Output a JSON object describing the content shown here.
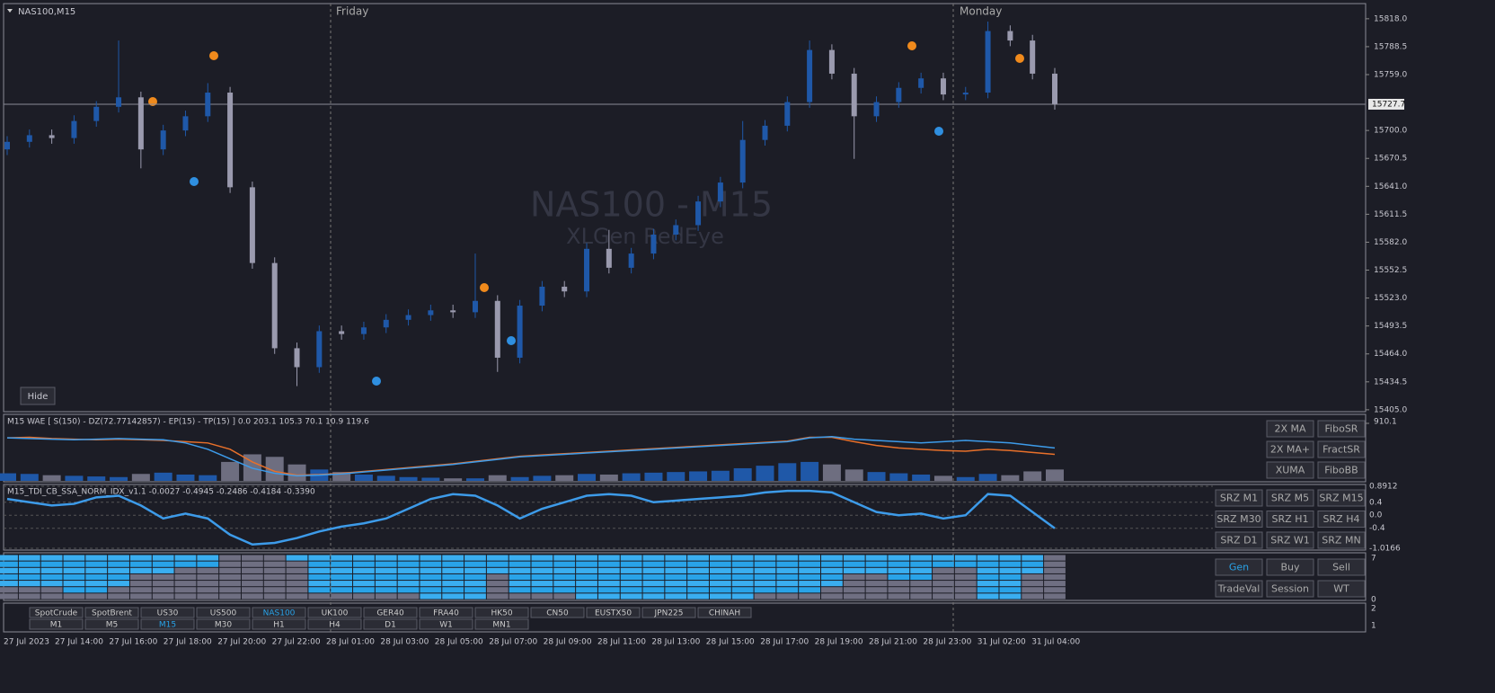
{
  "header": {
    "symbol": "NAS100,M15",
    "days": [
      "Friday",
      "Monday"
    ],
    "watermark": "NAS100 - M15",
    "watermark_sub": "XLGen RedEye",
    "hide": "Hide"
  },
  "chart_data": {
    "type": "candlestick",
    "open": [
      15680,
      15688,
      15695,
      15692,
      15710,
      15725,
      15735,
      15680,
      15700,
      15715,
      15740,
      15640,
      15560,
      15470,
      15450,
      15488,
      15485,
      15492,
      15500,
      15505,
      15510,
      15508,
      15520,
      15460,
      15515,
      15535,
      15530,
      15575,
      15555,
      15570,
      15590,
      15600,
      15625,
      15645,
      15690,
      15705,
      15730,
      15785,
      15760,
      15715,
      15730,
      15745,
      15755,
      15738,
      15740,
      15805,
      15795,
      15760
    ],
    "high": [
      15694,
      15701,
      15701,
      15716,
      15731,
      15795,
      15741,
      15706,
      15721,
      15750,
      15746,
      15646,
      15566,
      15476,
      15494,
      15494,
      15498,
      15506,
      15511,
      15516,
      15516,
      15570,
      15526,
      15521,
      15541,
      15541,
      15581,
      15595,
      15576,
      15596,
      15606,
      15631,
      15651,
      15710,
      15711,
      15736,
      15795,
      15791,
      15766,
      15736,
      15751,
      15761,
      15761,
      15746,
      15815,
      15811,
      15801,
      15766
    ],
    "low": [
      15674,
      15682,
      15686,
      15686,
      15704,
      15719,
      15660,
      15674,
      15694,
      15709,
      15634,
      15554,
      15464,
      15430,
      15444,
      15479,
      15479,
      15486,
      15494,
      15499,
      15502,
      15502,
      15445,
      15454,
      15509,
      15524,
      15524,
      15549,
      15549,
      15564,
      15584,
      15594,
      15619,
      15639,
      15684,
      15699,
      15724,
      15754,
      15670,
      15709,
      15724,
      15739,
      15732,
      15732,
      15734,
      15789,
      15754,
      15722
    ],
    "close": [
      15688,
      15695,
      15692,
      15710,
      15725,
      15735,
      15680,
      15700,
      15715,
      15740,
      15640,
      15560,
      15470,
      15450,
      15488,
      15485,
      15492,
      15500,
      15505,
      15510,
      15508,
      15520,
      15460,
      15515,
      15535,
      15530,
      15575,
      15555,
      15570,
      15590,
      15600,
      15625,
      15645,
      15690,
      15705,
      15730,
      15785,
      15760,
      15715,
      15730,
      15745,
      15755,
      15738,
      15740,
      15805,
      15795,
      15760,
      15728
    ],
    "ylim": [
      15403,
      15834
    ],
    "yticks": [
      {
        "value": 15818,
        "label": "15818.0"
      },
      15788.5,
      {
        "value": 15759,
        "label": "15759.0"
      },
      {
        "value": 15700,
        "label": "15700.0"
      },
      15670.5,
      {
        "value": 15641,
        "label": "15641.0"
      },
      15611.5,
      {
        "value": 15582,
        "label": "15582.0"
      },
      15552.5,
      {
        "value": 15523,
        "label": "15523.0"
      },
      15493.5,
      {
        "value": 15464,
        "label": "15464.0"
      },
      15434.5,
      {
        "value": 15405,
        "label": "15405.0"
      }
    ],
    "current_price": 15727.7,
    "time_labels": [
      "27 Jul 2023",
      "27 Jul 14:00",
      "27 Jul 16:00",
      "27 Jul 18:00",
      "27 Jul 20:00",
      "27 Jul 22:00",
      "28 Jul 01:00",
      "28 Jul 03:00",
      "28 Jul 05:00",
      "28 Jul 07:00",
      "28 Jul 09:00",
      "28 Jul 11:00",
      "28 Jul 13:00",
      "28 Jul 15:00",
      "28 Jul 17:00",
      "28 Jul 19:00",
      "28 Jul 21:00",
      "28 Jul 23:00",
      "31 Jul 02:00",
      "31 Jul 04:00"
    ]
  },
  "wae": {
    "label": "M15 WAE [ S(150) - DZ(72.77142857) - EP(15) - TP(15) ] 0.0 203.1 105.3 70.1 10.9 119.6",
    "ylim": [
      0,
      910.1
    ],
    "yticks": [
      910.1
    ],
    "histogram": [
      120,
      110,
      90,
      80,
      70,
      60,
      110,
      130,
      100,
      90,
      300,
      420,
      380,
      260,
      180,
      140,
      100,
      80,
      60,
      50,
      40,
      40,
      90,
      60,
      80,
      90,
      110,
      100,
      120,
      130,
      140,
      150,
      160,
      200,
      240,
      280,
      300,
      260,
      180,
      140,
      120,
      100,
      80,
      60,
      110,
      90,
      150,
      180
    ],
    "trend": [
      680,
      670,
      660,
      650,
      660,
      670,
      660,
      650,
      600,
      500,
      350,
      200,
      120,
      80,
      90,
      110,
      140,
      170,
      200,
      230,
      260,
      300,
      340,
      380,
      400,
      420,
      440,
      460,
      480,
      500,
      520,
      540,
      560,
      580,
      600,
      620,
      680,
      700,
      660,
      640,
      620,
      600,
      620,
      640,
      620,
      600,
      560,
      520
    ],
    "explosion": [
      680,
      690,
      670,
      660,
      650,
      660,
      650,
      640,
      620,
      600,
      500,
      300,
      150,
      90,
      100,
      120,
      150,
      180,
      210,
      240,
      270,
      310,
      350,
      390,
      410,
      430,
      450,
      470,
      490,
      510,
      530,
      550,
      570,
      590,
      610,
      630,
      690,
      690,
      620,
      560,
      520,
      500,
      480,
      470,
      500,
      480,
      450,
      420
    ],
    "buttons": [
      "2X MA",
      "FiboSR",
      "2X MA+",
      "FractSR",
      "XUMA",
      "FiboBB"
    ]
  },
  "tdi": {
    "label": "M15_TDI_CB_SSA_NORM_IDX_v1.1 -0.0027 -0.4945 -0.2486 -0.4184 -0.3390",
    "ylim": [
      -1.0166,
      0.8912
    ],
    "yticks": [
      0.8912,
      0.4,
      {
        "value": 0,
        "label": "0.0"
      },
      -0.4,
      -1.0166
    ],
    "values": [
      0.5,
      0.4,
      0.3,
      0.35,
      0.55,
      0.6,
      0.3,
      -0.1,
      0.05,
      -0.1,
      -0.6,
      -0.9,
      -0.85,
      -0.7,
      -0.5,
      -0.35,
      -0.25,
      -0.1,
      0.2,
      0.5,
      0.65,
      0.6,
      0.3,
      -0.1,
      0.2,
      0.4,
      0.6,
      0.65,
      0.6,
      0.4,
      0.45,
      0.5,
      0.55,
      0.6,
      0.7,
      0.75,
      0.75,
      0.7,
      0.4,
      0.1,
      0.0,
      0.05,
      -0.1,
      0.0,
      0.65,
      0.6,
      0.1,
      -0.4
    ],
    "buttons": [
      "SRZ M1",
      "SRZ M5",
      "SRZ M15",
      "SRZ M30",
      "SRZ H1",
      "SRZ H4",
      "SRZ D1",
      "SRZ W1",
      "SRZ MN"
    ]
  },
  "gen": {
    "ylim": [
      0,
      7
    ],
    "yticks": [
      7,
      0
    ],
    "levels": [
      5,
      5,
      5,
      6,
      6,
      5,
      3,
      3,
      2,
      2,
      0,
      0,
      0,
      1,
      6,
      6,
      6,
      6,
      6,
      7,
      7,
      7,
      3,
      6,
      6,
      6,
      7,
      7,
      7,
      7,
      7,
      7,
      7,
      7,
      6,
      6,
      6,
      5,
      3,
      3,
      4,
      4,
      2,
      2,
      7,
      7,
      3,
      0
    ],
    "buttons": [
      "Gen",
      "Buy",
      "Sell",
      "TradeVal",
      "Session",
      "WT"
    ],
    "active": 0
  },
  "bottom": {
    "axis_labels": [
      "2",
      "1"
    ],
    "symbols": [
      "SpotCrude",
      "SpotBrent",
      "US30",
      "US500",
      "NAS100",
      "UK100",
      "GER40",
      "FRA40",
      "HK50",
      "CN50",
      "EUSTX50",
      "JPN225",
      "CHINAH"
    ],
    "timeframes": [
      "M1",
      "M5",
      "M15",
      "M30",
      "H1",
      "H4",
      "D1",
      "W1",
      "MN1"
    ],
    "active_symbol": 4,
    "active_timeframe": 2
  }
}
